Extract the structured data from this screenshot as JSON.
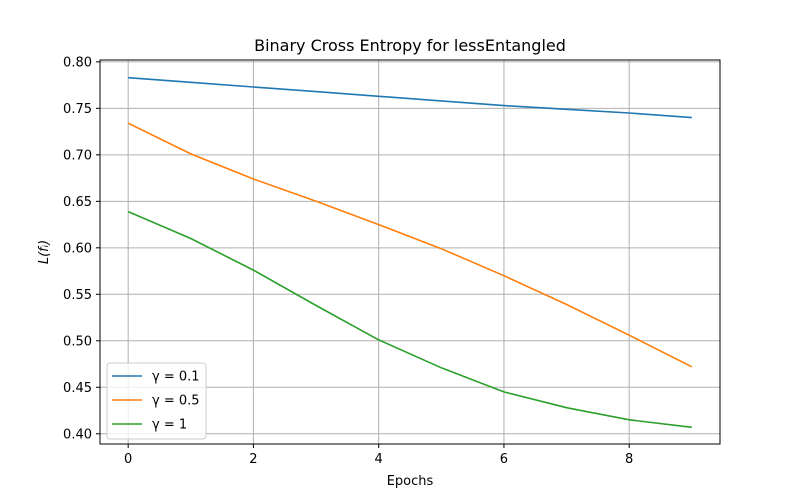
{
  "chart_data": {
    "type": "line",
    "title": "Binary Cross Entropy for lessEntangled",
    "xlabel": "Epochs",
    "ylabel": "L(fᵢ)",
    "x": [
      0,
      1,
      2,
      3,
      4,
      5,
      6,
      7,
      8,
      9
    ],
    "xlim": [
      -0.45,
      9.45
    ],
    "ylim": [
      0.389,
      0.802
    ],
    "xticks": [
      0,
      2,
      4,
      6,
      8
    ],
    "yticks": [
      0.4,
      0.45,
      0.5,
      0.55,
      0.6,
      0.65,
      0.7,
      0.75,
      0.8
    ],
    "grid": true,
    "legend_position": "lower-left",
    "series": [
      {
        "name": "γ = 0.1",
        "color": "#1f77b4",
        "values": [
          0.783,
          0.778,
          0.773,
          0.768,
          0.763,
          0.758,
          0.753,
          0.749,
          0.745,
          0.74
        ]
      },
      {
        "name": "γ = 0.5",
        "color": "#ff7f0e",
        "values": [
          0.734,
          0.701,
          0.674,
          0.65,
          0.625,
          0.599,
          0.57,
          0.539,
          0.506,
          0.472
        ]
      },
      {
        "name": "γ = 1",
        "color": "#2ca02c",
        "values": [
          0.639,
          0.61,
          0.576,
          0.538,
          0.501,
          0.471,
          0.445,
          0.428,
          0.415,
          0.407
        ]
      }
    ]
  }
}
